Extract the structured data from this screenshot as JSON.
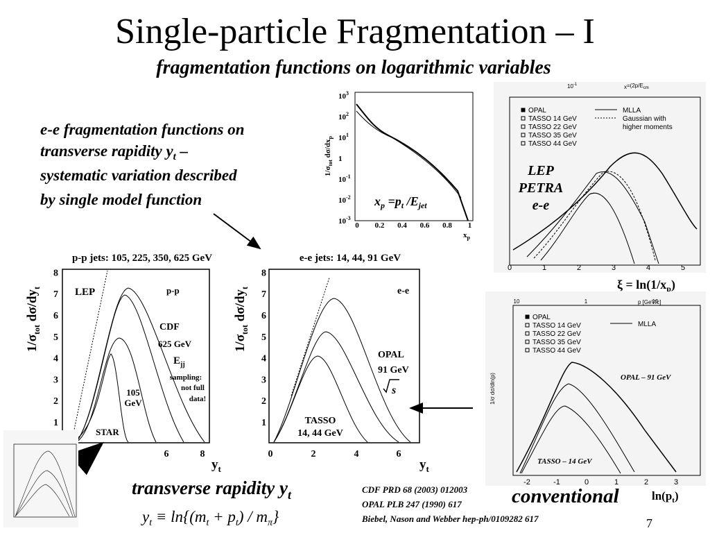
{
  "title": "Single-particle Fragmentation – I",
  "subtitle": "fragmentation functions on logarithmic variables",
  "description": {
    "line1": "e-e fragmentation functions on",
    "line2": "transverse rapidity y",
    "line2_sub": "t",
    "line2_end": " –",
    "line3": "systematic variation described",
    "line4": "by single model function"
  },
  "xp_plot": {
    "ytick_base": [
      "10",
      "10",
      "10",
      "1",
      "10",
      "10",
      "10"
    ],
    "ytick_exp": [
      "3",
      "2",
      "1",
      "",
      "-1",
      "-2",
      "-3"
    ],
    "xticks": [
      "0",
      "0.2",
      "0.4",
      "0.6",
      "0.8",
      "1"
    ],
    "ylabel": "1/σ",
    "ylabel_sub": "tot",
    "ylabel_end": " dσ/dx",
    "ylabel_sub2": "p",
    "xlabel": "x",
    "xlabel_sub": "p",
    "formula": {
      "x": "x",
      "x_sub": "p",
      "eq": " =p",
      "p_sub": "t",
      "div": " /E",
      "e_sub": "jet"
    }
  },
  "lep_plot": {
    "legend": [
      "OPAL",
      "TASSO 14 GeV",
      "TASSO 22 GeV",
      "TASSO 35 GeV",
      "TASSO 44 GeV"
    ],
    "curves": [
      "MLLA",
      "Gaussian with",
      "higher moments"
    ],
    "top_label": "x",
    "top_label2": "=(2p/E",
    "top_label3": "cm",
    "top_tick1": "10",
    "top_tick_exp": "-1",
    "labels": [
      "LEP",
      "PETRA",
      "e-e"
    ],
    "xticks": [
      "0",
      "1",
      "2",
      "3",
      "4",
      "5"
    ],
    "xlabel": "ξ = ln(1/x",
    "xlabel_sub": "p",
    "xlabel_end": ")"
  },
  "pp_panel": {
    "title": "p-p jets: 105, 225, 350, 625 GeV",
    "ylabel": "1/σ",
    "ylabel_sub": "tot",
    "ylabel_mid": " dσ/dy",
    "ylabel_sub2": "t",
    "yticks": [
      "1",
      "2",
      "3",
      "4",
      "5",
      "6",
      "7",
      "8"
    ],
    "xticks": [
      "6",
      "8"
    ],
    "xlabel": "y",
    "xlabel_sub": "t",
    "labels": {
      "lep": "LEP",
      "pp": "p-p",
      "cdf": "CDF",
      "energy": "625 GeV",
      "e": "E",
      "e_sub": "jj",
      "note1": "sampling:",
      "note2": "not full",
      "note3": "data!",
      "low1": "105",
      "low2": "GeV",
      "star": "STAR"
    }
  },
  "ee_panel": {
    "title": "e-e jets: 14, 44, 91 GeV",
    "ylabel": "1/σ",
    "ylabel_sub": "tot",
    "ylabel_mid": " dσ/dy",
    "ylabel_sub2": "t",
    "yticks": [
      "1",
      "2",
      "3",
      "4",
      "5",
      "6",
      "7",
      "8"
    ],
    "xticks": [
      "0",
      "2",
      "4",
      "6"
    ],
    "xlabel": "y",
    "xlabel_sub": "t",
    "labels": {
      "ee": "e-e",
      "opal": "OPAL",
      "energy": "91 GeV",
      "sqrt": "s",
      "tasso": "TASSO",
      "tasso_energy": "14, 44 GeV"
    }
  },
  "conv_plot": {
    "legend": [
      "OPAL",
      "TASSO 14 GeV",
      "TASSO 22 GeV",
      "TASSO 35 GeV",
      "TASSO 44 GeV"
    ],
    "curve": "MLLA",
    "top_label": "p [GeV/c]",
    "top_ticks": [
      "10",
      "1",
      "10"
    ],
    "ylabel": "1/σ dσ/dln(p)",
    "opal": "OPAL – 91 GeV",
    "tasso": "TASSO – 14 GeV",
    "xticks": [
      "-2",
      "-1",
      "0",
      "1",
      "2",
      "3"
    ]
  },
  "footer": {
    "rapidity": "transverse rapidity y",
    "rapidity_sub": "t",
    "formula": "y",
    "formula_sub": "t",
    "formula_rest": " ≡ ln{(m",
    "m_sub": "t",
    "plus": " + p",
    "p_sub": "t",
    "close": ") / m",
    "pi_sub": "π",
    "brace": "}",
    "conventional": "conventional",
    "ln": "ln(p",
    "ln_sub": "t",
    "ln_end": ")",
    "refs": [
      "CDF PRD 68 (2003) 012003",
      "OPAL PLB 247 (1990) 617",
      "Biebel, Nason and Webber hep-ph/0109282 617"
    ],
    "page": "7"
  }
}
